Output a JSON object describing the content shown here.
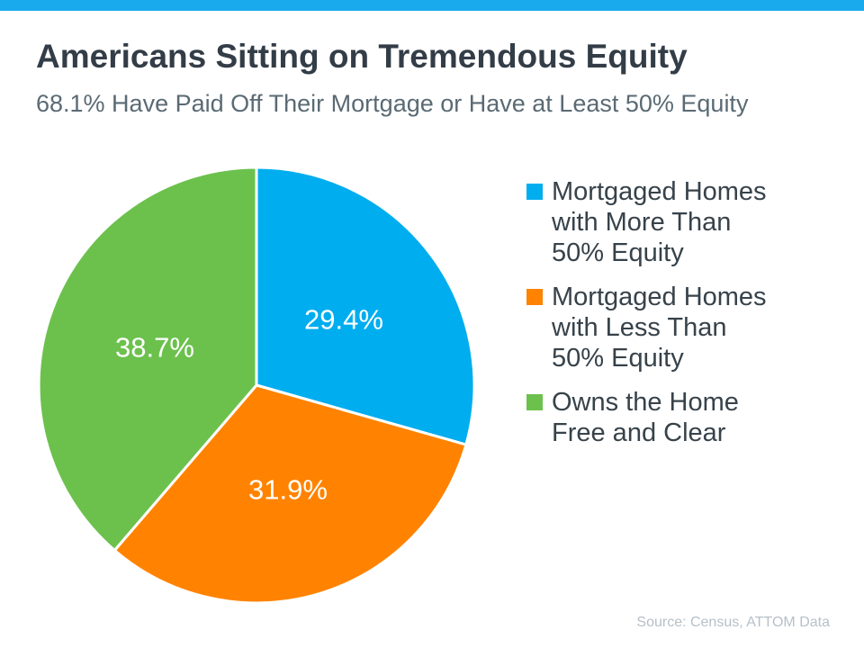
{
  "page": {
    "accent_color": "#18AAEC",
    "background_color": "#FFFFFF"
  },
  "chart_data": {
    "type": "pie",
    "title": "Americans Sitting on Tremendous Equity",
    "subtitle": "68.1% Have Paid Off Their Mortgage or Have at Least 50% Equity",
    "source": "Source: Census, ATTOM Data",
    "start_angle": "top",
    "direction": "clockwise",
    "legend_position": "right",
    "value_label_format": "{value}%",
    "value_label_color": "#FFFFFF",
    "slice_border_color": "#FFFFFF",
    "slices": [
      {
        "label": "Mortgaged Homes with More Than 50% Equity",
        "value": 29.4,
        "color": "#00ADEF"
      },
      {
        "label": "Mortgaged Homes with Less Than 50% Equity",
        "value": 31.9,
        "color": "#FF8300"
      },
      {
        "label": "Owns the Home Free and Clear",
        "value": 38.7,
        "color": "#6CC14D"
      }
    ]
  }
}
